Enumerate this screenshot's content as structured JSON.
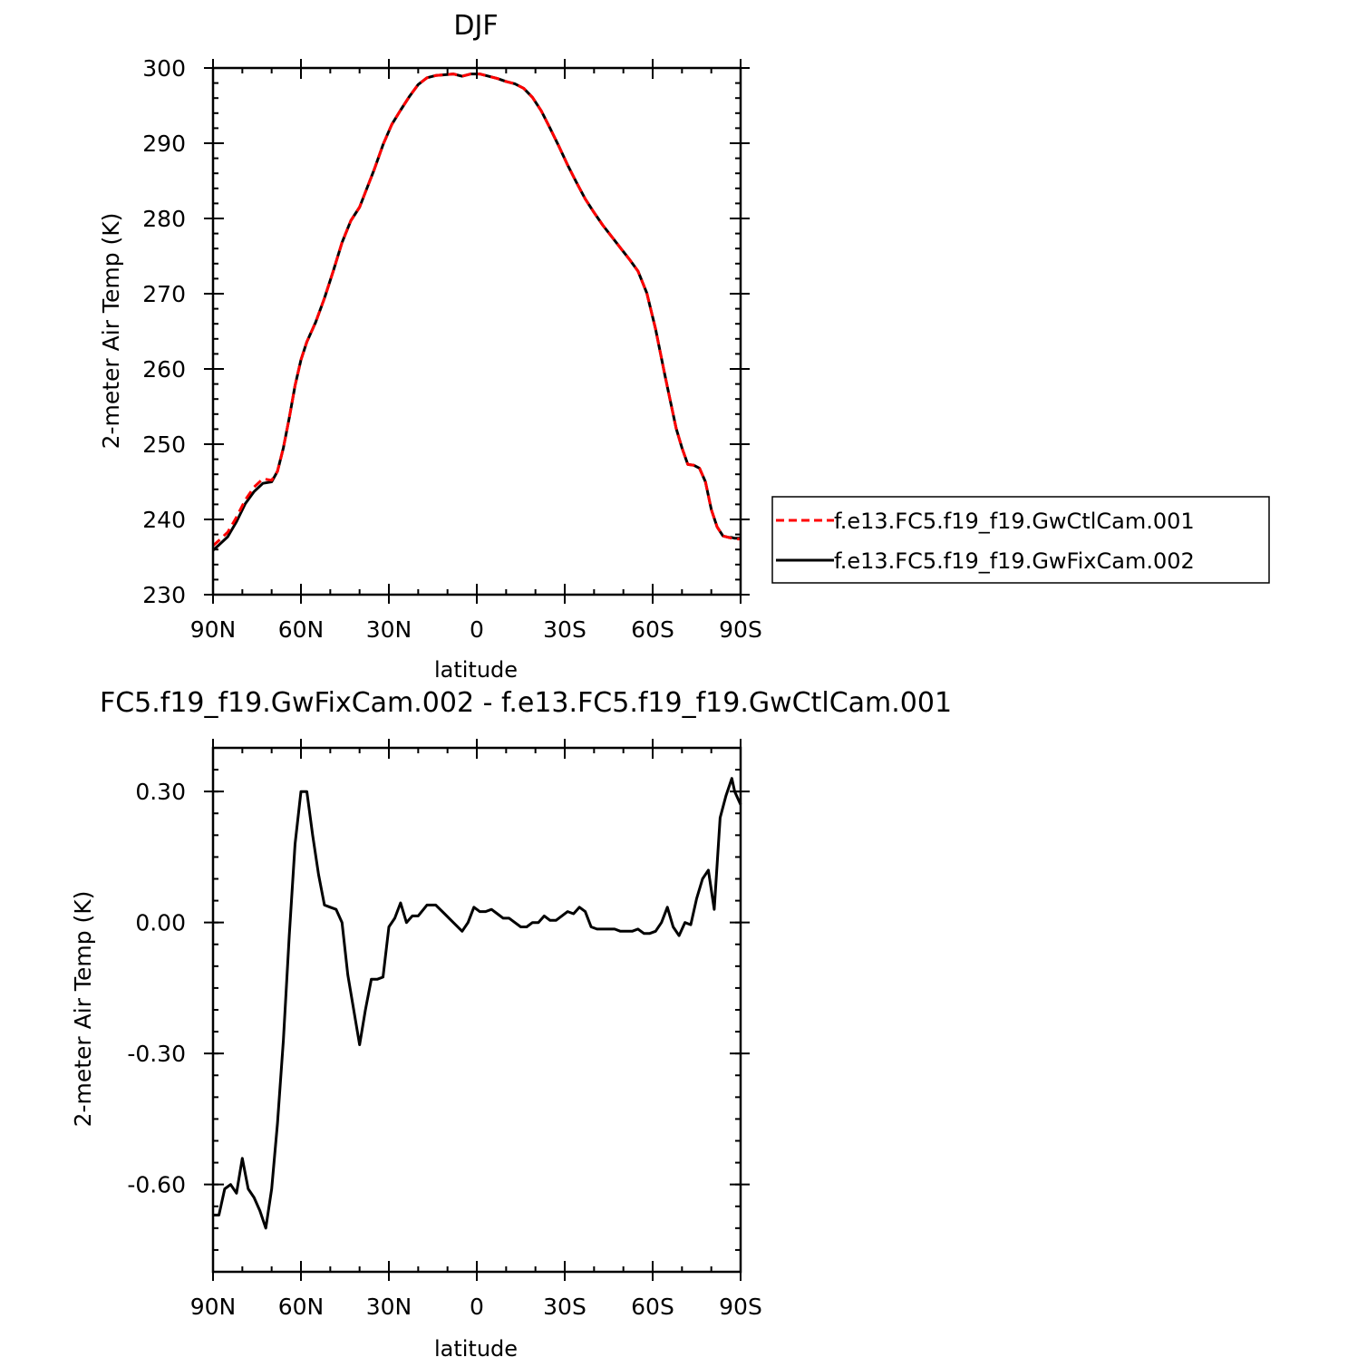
{
  "chart_data": [
    {
      "type": "line",
      "title": "DJF",
      "xlabel": "latitude",
      "ylabel": "2-meter Air Temp (K)",
      "xlim": [
        90,
        -90
      ],
      "ylim": [
        230,
        300
      ],
      "x_tick_values": [
        90,
        60,
        30,
        0,
        -30,
        -60,
        -90
      ],
      "x_tick_labels": [
        "90N",
        "60N",
        "30N",
        "0",
        "30S",
        "60S",
        "90S"
      ],
      "y_tick_values": [
        230,
        240,
        250,
        260,
        270,
        280,
        290,
        300
      ],
      "y_tick_labels": [
        "230",
        "240",
        "250",
        "260",
        "270",
        "280",
        "290",
        "300"
      ],
      "legend": "outside-right",
      "grid": false,
      "series": [
        {
          "name": "f.e13.FC5.f19_f19.GwCtlCam.001",
          "color": "#ff0000",
          "dash": "dashed",
          "x": [
            90,
            88,
            85,
            82,
            79,
            76,
            73,
            70,
            68,
            66,
            64,
            62,
            60,
            58,
            55,
            52,
            49,
            46,
            43,
            40,
            38,
            35,
            32,
            29,
            26,
            23,
            20,
            17,
            14,
            11,
            8,
            5,
            2,
            -1,
            -4,
            -7,
            -10,
            -13,
            -16,
            -19,
            -22,
            -25,
            -28,
            -31,
            -34,
            -37,
            -40,
            -43,
            -46,
            -49,
            -52,
            -55,
            -58,
            -61,
            -64,
            -66,
            -68,
            -70,
            -72,
            -74,
            -76,
            -78,
            -80,
            -82,
            -84,
            -85,
            -86,
            -87,
            -88,
            -89,
            -90
          ],
          "values": [
            236.5,
            237.2,
            238.3,
            240.3,
            242.6,
            244.3,
            245.4,
            245.2,
            246.4,
            249.5,
            253.5,
            257.8,
            261.2,
            263.6,
            266.2,
            269.4,
            273.0,
            276.8,
            279.7,
            281.5,
            283.5,
            286.5,
            289.8,
            292.5,
            294.4,
            296.2,
            297.8,
            298.7,
            299.0,
            299.1,
            299.2,
            298.9,
            299.2,
            299.2,
            298.9,
            298.6,
            298.2,
            297.9,
            297.3,
            296.1,
            294.3,
            292.0,
            289.6,
            287.1,
            284.8,
            282.6,
            280.8,
            279.1,
            277.6,
            276.1,
            274.6,
            273.0,
            270.1,
            265.3,
            259.5,
            255.8,
            252.1,
            249.5,
            247.3,
            247.2,
            246.8,
            245.0,
            241.3,
            239.0,
            237.8,
            237.7,
            237.6,
            237.5,
            237.5,
            237.4,
            237.4
          ]
        },
        {
          "name": "f.e13.FC5.f19_f19.GwFixCam.002",
          "color": "#000000",
          "dash": "solid",
          "x": [
            90,
            88,
            85,
            82,
            79,
            76,
            73,
            70,
            68,
            66,
            64,
            62,
            60,
            58,
            55,
            52,
            49,
            46,
            43,
            40,
            38,
            35,
            32,
            29,
            26,
            23,
            20,
            17,
            14,
            11,
            8,
            5,
            2,
            -1,
            -4,
            -7,
            -10,
            -13,
            -16,
            -19,
            -22,
            -25,
            -28,
            -31,
            -34,
            -37,
            -40,
            -43,
            -46,
            -49,
            -52,
            -55,
            -58,
            -61,
            -64,
            -66,
            -68,
            -70,
            -72,
            -74,
            -76,
            -78,
            -80,
            -82,
            -84,
            -85,
            -86,
            -87,
            -88,
            -89,
            -90
          ],
          "values": [
            235.9,
            236.6,
            237.7,
            239.7,
            242.1,
            243.7,
            244.8,
            245.0,
            246.4,
            249.5,
            253.5,
            257.8,
            261.2,
            263.6,
            266.2,
            269.4,
            273.0,
            276.8,
            279.7,
            281.5,
            283.5,
            286.5,
            289.8,
            292.5,
            294.4,
            296.2,
            297.8,
            298.7,
            299.0,
            299.1,
            299.2,
            298.9,
            299.2,
            299.2,
            298.9,
            298.6,
            298.2,
            297.9,
            297.3,
            296.1,
            294.3,
            292.0,
            289.6,
            287.1,
            284.8,
            282.6,
            280.8,
            279.1,
            277.6,
            276.1,
            274.6,
            273.0,
            270.1,
            265.3,
            259.5,
            255.8,
            252.1,
            249.5,
            247.3,
            247.2,
            246.8,
            245.0,
            241.3,
            239.0,
            237.8,
            237.7,
            237.6,
            237.6,
            237.5,
            237.5,
            237.5
          ]
        }
      ]
    },
    {
      "type": "line",
      "title": "FC5.f19_f19.GwFixCam.002 - f.e13.FC5.f19_f19.GwCtlCam.001",
      "xlabel": "latitude",
      "ylabel": "2-meter Air Temp (K)",
      "xlim": [
        90,
        -90
      ],
      "ylim": [
        -0.8,
        0.4
      ],
      "x_tick_values": [
        90,
        60,
        30,
        0,
        -30,
        -60,
        -90
      ],
      "x_tick_labels": [
        "90N",
        "60N",
        "30N",
        "0",
        "30S",
        "60S",
        "90S"
      ],
      "y_tick_values": [
        -0.6,
        -0.3,
        0.0,
        0.3
      ],
      "y_tick_labels": [
        "-0.60",
        "-0.30",
        "0.00",
        "0.30"
      ],
      "grid": false,
      "series": [
        {
          "color": "#000000",
          "dash": "solid",
          "x": [
            90,
            88,
            86,
            84,
            82,
            80,
            78,
            76,
            74,
            72,
            70,
            68,
            66,
            64,
            62,
            60,
            58,
            56,
            54,
            52,
            50,
            48,
            46,
            44,
            42,
            40,
            38,
            36,
            34,
            32,
            30,
            28,
            26,
            24,
            22,
            20,
            17,
            14,
            11,
            8,
            5,
            3,
            1,
            -1,
            -3,
            -5,
            -7,
            -9,
            -11,
            -13,
            -15,
            -17,
            -19,
            -21,
            -23,
            -25,
            -27,
            -29,
            -31,
            -33,
            -35,
            -37,
            -39,
            -41,
            -43,
            -45,
            -47,
            -49,
            -51,
            -53,
            -55,
            -57,
            -59,
            -61,
            -63,
            -65,
            -67,
            -69,
            -71,
            -73,
            -75,
            -77,
            -79,
            -81,
            -83,
            -85,
            -87,
            -88,
            -90
          ],
          "values": [
            -0.67,
            -0.67,
            -0.61,
            -0.6,
            -0.62,
            -0.54,
            -0.61,
            -0.63,
            -0.66,
            -0.7,
            -0.61,
            -0.46,
            -0.27,
            -0.03,
            0.18,
            0.3,
            0.3,
            0.2,
            0.11,
            0.04,
            0.035,
            0.03,
            0.0,
            -0.12,
            -0.2,
            -0.28,
            -0.2,
            -0.13,
            -0.13,
            -0.125,
            -0.01,
            0.01,
            0.045,
            0.0,
            0.015,
            0.015,
            0.04,
            0.04,
            0.02,
            0.0,
            -0.02,
            0.0,
            0.035,
            0.025,
            0.025,
            0.03,
            0.02,
            0.01,
            0.01,
            0.0,
            -0.01,
            -0.01,
            0.0,
            0.0,
            0.015,
            0.005,
            0.005,
            0.015,
            0.025,
            0.02,
            0.035,
            0.025,
            -0.01,
            -0.015,
            -0.015,
            -0.015,
            -0.015,
            -0.02,
            -0.02,
            -0.02,
            -0.015,
            -0.025,
            -0.025,
            -0.02,
            0.0,
            0.035,
            -0.01,
            -0.03,
            0.0,
            -0.005,
            0.055,
            0.1,
            0.12,
            0.03,
            0.24,
            0.29,
            0.33,
            0.3,
            0.27
          ]
        }
      ]
    }
  ]
}
